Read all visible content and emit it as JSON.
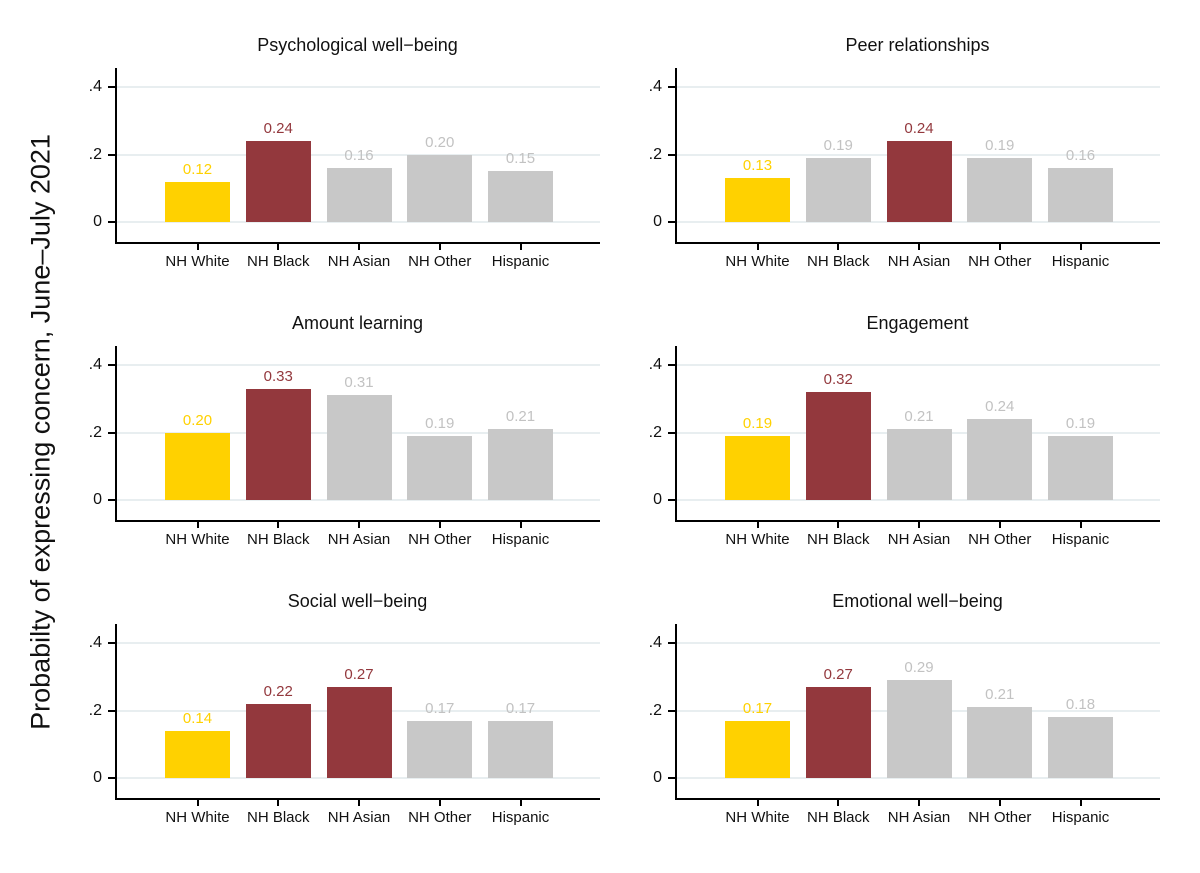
{
  "figure": {
    "ylabel": "Probabilty of expressing concern, June–July 2021"
  },
  "chart_data": {
    "type": "bar",
    "layout": "2-column by 3-row grid of small-multiple bar panels",
    "ylabel": "Probabilty of expressing concern, June–July 2021",
    "categories": [
      "NH White",
      "NH Black",
      "NH Asian",
      "NH Other",
      "Hispanic"
    ],
    "ylim": [
      0,
      0.45
    ],
    "y_ticks": [
      {
        "value": 0.0,
        "label": "0"
      },
      {
        "value": 0.2,
        "label": ".2"
      },
      {
        "value": 0.4,
        "label": ".4"
      }
    ],
    "grid": true,
    "legend": "none",
    "colors": {
      "yellow": "#FFD100",
      "maroon": "#93383D",
      "gray": "#C8C8C8",
      "axis": "#000000",
      "gridline": "#E8EEF0"
    },
    "label_colors": {
      "yellow": "#FFD100",
      "maroon": "#93383D",
      "gray": "#C2C2C2"
    },
    "panels": [
      {
        "title": "Psychological well−being",
        "values": [
          0.12,
          0.24,
          0.16,
          0.2,
          0.15
        ],
        "labels": [
          "0.12",
          "0.24",
          "0.16",
          "0.20",
          "0.15"
        ],
        "bar_colors": [
          "yellow",
          "maroon",
          "gray",
          "gray",
          "gray"
        ]
      },
      {
        "title": "Peer relationships",
        "values": [
          0.13,
          0.19,
          0.24,
          0.19,
          0.16
        ],
        "labels": [
          "0.13",
          "0.19",
          "0.24",
          "0.19",
          "0.16"
        ],
        "bar_colors": [
          "yellow",
          "gray",
          "maroon",
          "gray",
          "gray"
        ]
      },
      {
        "title": "Amount learning",
        "values": [
          0.2,
          0.33,
          0.31,
          0.19,
          0.21
        ],
        "labels": [
          "0.20",
          "0.33",
          "0.31",
          "0.19",
          "0.21"
        ],
        "bar_colors": [
          "yellow",
          "maroon",
          "gray",
          "gray",
          "gray"
        ]
      },
      {
        "title": "Engagement",
        "values": [
          0.19,
          0.32,
          0.21,
          0.24,
          0.19
        ],
        "labels": [
          "0.19",
          "0.32",
          "0.21",
          "0.24",
          "0.19"
        ],
        "bar_colors": [
          "yellow",
          "maroon",
          "gray",
          "gray",
          "gray"
        ]
      },
      {
        "title": "Social well−being",
        "values": [
          0.14,
          0.22,
          0.27,
          0.17,
          0.17
        ],
        "labels": [
          "0.14",
          "0.22",
          "0.27",
          "0.17",
          "0.17"
        ],
        "bar_colors": [
          "yellow",
          "maroon",
          "maroon",
          "gray",
          "gray"
        ]
      },
      {
        "title": "Emotional well−being",
        "values": [
          0.17,
          0.27,
          0.29,
          0.21,
          0.18
        ],
        "labels": [
          "0.17",
          "0.27",
          "0.29",
          "0.21",
          "0.18"
        ],
        "bar_colors": [
          "yellow",
          "maroon",
          "gray",
          "gray",
          "gray"
        ]
      }
    ]
  }
}
